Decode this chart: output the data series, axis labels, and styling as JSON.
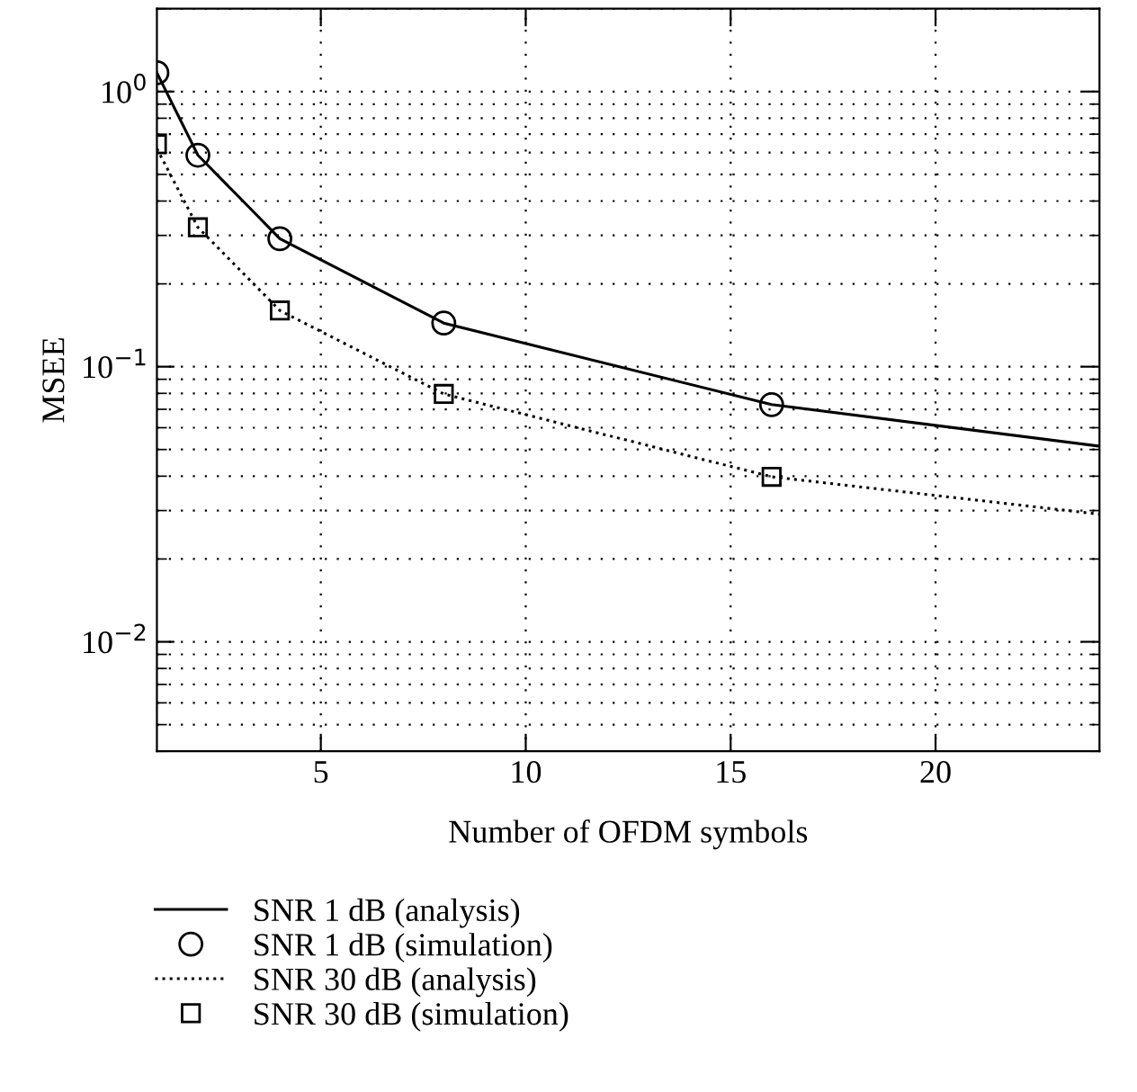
{
  "chart_data": {
    "type": "line",
    "xlabel": "Number of OFDM symbols",
    "ylabel": "MSEE",
    "log": "y",
    "xlim": [
      1,
      24
    ],
    "xticks": [
      5,
      10,
      15,
      20
    ],
    "ylim": [
      0.004,
      2
    ],
    "yticks": [
      {
        "value": 1,
        "label": "10$^{0}$"
      },
      {
        "value": 0.1,
        "label": "10$^{−1}$"
      },
      {
        "value": 0.01,
        "label": "10$^{−2}$"
      }
    ],
    "grid": true,
    "legend": "bottom",
    "series": [
      {
        "name": "SNR 1 dB (analysis)",
        "color": "#000000",
        "line_style": "solid",
        "marker": "none",
        "x": [
          1,
          2,
          4,
          8,
          16,
          24
        ],
        "values": [
          1.17,
          0.587,
          0.292,
          0.144,
          0.0728,
          0.0514
        ]
      },
      {
        "name": "SNR 1 dB (simulation)",
        "type": "scatter",
        "color": "#000000",
        "marker": "circle",
        "x": [
          1,
          2,
          4,
          8,
          16
        ],
        "values": [
          1.17,
          0.587,
          0.292,
          0.144,
          0.0728
        ]
      },
      {
        "name": "SNR 30 dB (analysis)",
        "color": "#000000",
        "line_style": "dotted",
        "marker": "none",
        "x": [
          1,
          2,
          4,
          8,
          16,
          24
        ],
        "values": [
          0.62,
          0.321,
          0.16,
          0.0796,
          0.0398,
          0.0291
        ]
      },
      {
        "name": "SNR 30 dB (simulation)",
        "type": "scatter",
        "color": "#000000",
        "marker": "square",
        "x": [
          1,
          2,
          4,
          8,
          16
        ],
        "values": [
          0.643,
          0.321,
          0.16,
          0.0796,
          0.0398
        ]
      }
    ]
  }
}
